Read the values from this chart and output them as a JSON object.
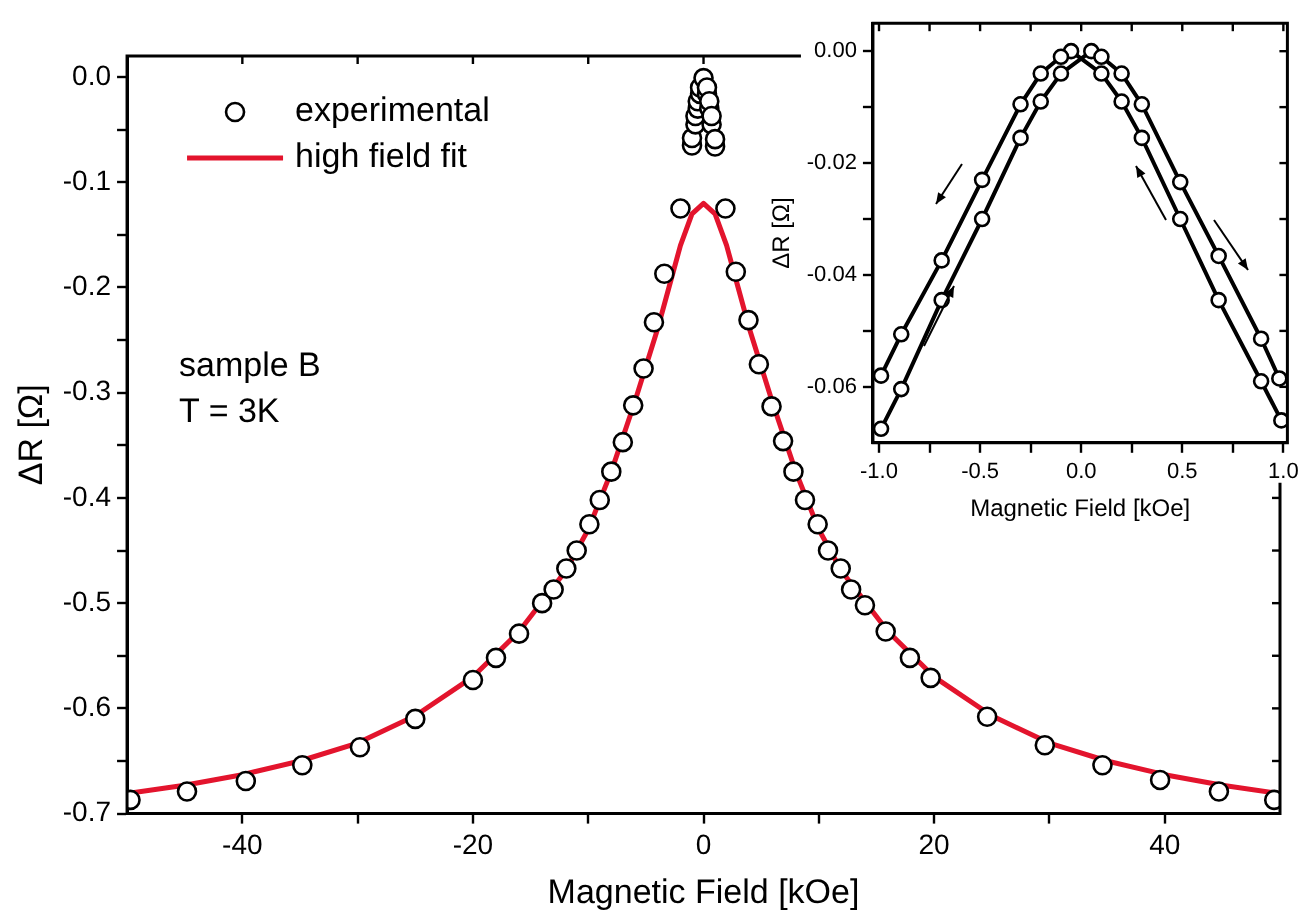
{
  "chart_data": [
    {
      "type": "scatter",
      "xlabel": "Magnetic Field [kOe]",
      "ylabel": "ΔR [Ω]",
      "xlim": [
        -50,
        50
      ],
      "ylim": [
        -0.7,
        0.02
      ],
      "xticks": [
        -40,
        -20,
        0,
        20,
        40,
        {
          "value": -30,
          "label": null
        },
        {
          "value": -10,
          "label": null
        },
        {
          "value": 10,
          "label": null
        },
        {
          "value": 30,
          "label": null
        }
      ],
      "yticks": [
        {
          "value": 0,
          "label": "0.0"
        },
        -0.1,
        -0.2,
        -0.3,
        -0.4,
        -0.5,
        -0.6,
        -0.7,
        {
          "value": -0.05,
          "label": null
        },
        {
          "value": -0.15,
          "label": null
        },
        {
          "value": -0.25,
          "label": null
        },
        {
          "value": -0.35,
          "label": null
        },
        {
          "value": -0.45,
          "label": null
        },
        {
          "value": -0.55,
          "label": null
        },
        {
          "value": -0.65,
          "label": null
        }
      ],
      "legend": "top left",
      "annotations": [
        "sample B",
        "T = 3K"
      ],
      "series": [
        {
          "name": "experimental",
          "type": "scatter",
          "marker": "circle",
          "color": "#000000",
          "x": [
            -49.7,
            -44.8,
            -39.7,
            -34.8,
            -29.8,
            -25,
            -20,
            -18,
            -16,
            -14,
            -13,
            -11.9,
            -11,
            -9.9,
            -9,
            -8,
            -7,
            -6.1,
            -5.2,
            -4.3,
            -3.4,
            -2,
            -1,
            -1,
            -0.7,
            -0.7,
            -0.5,
            -0.5,
            -0.3,
            -0.3,
            0,
            0.3,
            0.3,
            0.5,
            0.5,
            0.7,
            0.7,
            1,
            1,
            1.9,
            2.8,
            3.9,
            4.8,
            5.9,
            6.9,
            7.8,
            8.8,
            9.9,
            10.8,
            11.9,
            12.8,
            14,
            15.8,
            17.9,
            19.7,
            24.6,
            29.6,
            34.6,
            39.6,
            44.7,
            49.5
          ],
          "values": [
            -0.687,
            -0.679,
            -0.669,
            -0.654,
            -0.637,
            -0.61,
            -0.573,
            -0.552,
            -0.529,
            -0.5,
            -0.487,
            -0.467,
            -0.45,
            -0.425,
            -0.402,
            -0.375,
            -0.347,
            -0.312,
            -0.277,
            -0.233,
            -0.187,
            -0.125,
            -0.065,
            -0.058,
            -0.045,
            -0.037,
            -0.03,
            -0.023,
            -0.016,
            -0.01,
            -0.001,
            -0.016,
            -0.01,
            -0.03,
            -0.023,
            -0.045,
            -0.037,
            -0.066,
            -0.059,
            -0.125,
            -0.185,
            -0.231,
            -0.273,
            -0.313,
            -0.346,
            -0.375,
            -0.402,
            -0.425,
            -0.45,
            -0.467,
            -0.487,
            -0.502,
            -0.527,
            -0.552,
            -0.571,
            -0.608,
            -0.635,
            -0.654,
            -0.668,
            -0.679,
            -0.687
          ]
        },
        {
          "name": "high field fit",
          "type": "line",
          "marker": "none",
          "line_style": "solid",
          "color": "#e3142d",
          "x": [
            -50,
            -45,
            -40,
            -35,
            -30,
            -25,
            -20,
            -16,
            -12,
            -10,
            -8,
            -6,
            -4,
            -3,
            -2,
            -1,
            0,
            1,
            2,
            3,
            4,
            6,
            8,
            10,
            12,
            16,
            20,
            25,
            30,
            35,
            40,
            45,
            50
          ],
          "values": [
            -0.681,
            -0.673,
            -0.663,
            -0.65,
            -0.633,
            -0.607,
            -0.57,
            -0.527,
            -0.47,
            -0.43,
            -0.375,
            -0.31,
            -0.24,
            -0.2,
            -0.16,
            -0.13,
            -0.12,
            -0.13,
            -0.16,
            -0.2,
            -0.24,
            -0.31,
            -0.375,
            -0.43,
            -0.47,
            -0.527,
            -0.57,
            -0.607,
            -0.633,
            -0.65,
            -0.663,
            -0.673,
            -0.681
          ]
        }
      ]
    },
    {
      "type": "line",
      "xlabel": "Magnetic Field [kOe]",
      "ylabel": "ΔR [Ω]",
      "marker": "circle",
      "line_style": "solid",
      "xlim": [
        -1.03,
        1.02
      ],
      "ylim": [
        -0.07,
        0.005
      ],
      "xticks": [
        {
          "value": -1,
          "label": "-1.0"
        },
        -0.5,
        {
          "value": 0,
          "label": "0.0"
        },
        0.5,
        {
          "value": 1,
          "label": "1.0"
        },
        {
          "value": -0.75,
          "label": null
        },
        {
          "value": -0.25,
          "label": null
        },
        {
          "value": 0.25,
          "label": null
        },
        {
          "value": 0.75,
          "label": null
        }
      ],
      "yticks": [
        {
          "value": 0,
          "label": "0.00"
        },
        -0.02,
        -0.04,
        -0.06,
        {
          "value": -0.01,
          "label": null
        },
        {
          "value": -0.03,
          "label": null
        },
        {
          "value": -0.05,
          "label": null
        }
      ],
      "series": [
        {
          "color": "#000000",
          "x": [
            0.99,
            0.89,
            0.68,
            0.49,
            0.3,
            0.2,
            0.1,
            -0.05,
            -0.1,
            -0.2,
            -0.3,
            -0.49,
            -0.69,
            -0.89,
            -0.99
          ],
          "values": [
            -0.066,
            -0.059,
            -0.0445,
            -0.03,
            -0.0155,
            -0.009,
            -0.004,
            0.0,
            -0.001,
            -0.004,
            -0.0095,
            -0.023,
            -0.0374,
            -0.0506,
            -0.058
          ]
        },
        {
          "color": "#000000",
          "x": [
            -0.99,
            -0.89,
            -0.69,
            -0.49,
            -0.3,
            -0.2,
            -0.1,
            0.05,
            0.1,
            0.2,
            0.3,
            0.49,
            0.68,
            0.89,
            0.98
          ],
          "values": [
            -0.0675,
            -0.0604,
            -0.0445,
            -0.03,
            -0.0155,
            -0.009,
            -0.004,
            0.0,
            -0.001,
            -0.004,
            -0.0095,
            -0.0234,
            -0.0366,
            -0.0514,
            -0.0585
          ]
        }
      ]
    }
  ]
}
